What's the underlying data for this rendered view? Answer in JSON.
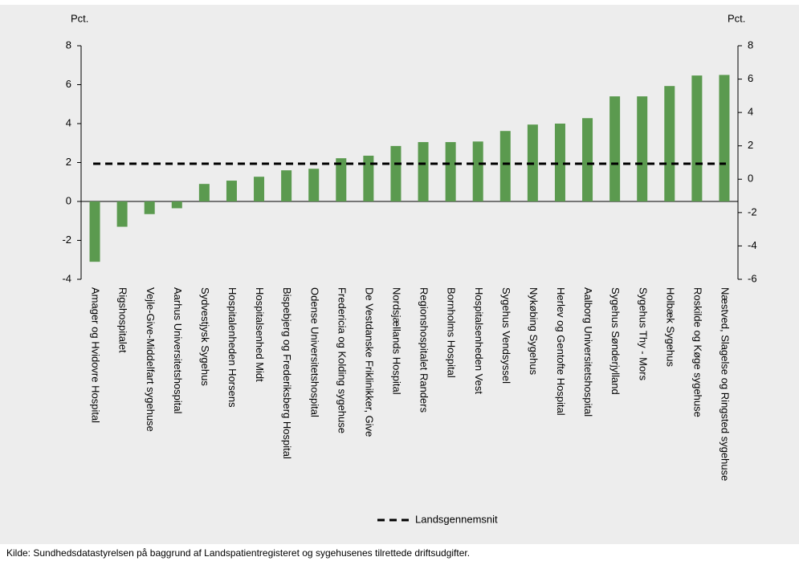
{
  "chart_data": {
    "type": "bar",
    "y_label": "Pct.",
    "y2_label": "Pct.",
    "categories": [
      "Amager og Hvidovre Hospital",
      "Rigshospitalet",
      "Vejle-Give-Middelfart sygehuse",
      "Aarhus Universitetshospital",
      "Sydvestjysk Sygehus",
      "Hospitalenheden Horsens",
      "Hospitalsenhed Midt",
      "Bispebjerg og Frederiksberg Hospital",
      "Odense Universitetshospital",
      "Fredericia og Kolding sygehuse",
      "De Vestdanske Friklinikker, Give",
      "Nordsjællands Hospital",
      "Regionshospitalet Randers",
      "Bornholms Hospital",
      "Hospitalsenheden Vest",
      "Sygehus Vendsyssel",
      "Nykøbing Sygehus",
      "Herlev og Gentofte Hospital",
      "Aalborg Universitetshospital",
      "Sygehus Sønderjylland",
      "Sygehus Thy - Mors",
      "Holbæk Sygehus",
      "Roskilde og Køge sygehuse",
      "Næstved, Slagelse og Ringsted sygehuse"
    ],
    "values": [
      -3.1,
      -1.3,
      -0.65,
      -0.35,
      0.9,
      1.07,
      1.27,
      1.6,
      1.68,
      2.22,
      2.35,
      2.85,
      3.05,
      3.05,
      3.08,
      3.62,
      3.95,
      4.0,
      4.28,
      5.4,
      5.4,
      5.93,
      6.47,
      6.5
    ],
    "color": "#5b9a4f",
    "reference_line": {
      "name": "Landsgennemsnit",
      "value": 1.94,
      "color": "#000000"
    },
    "ylim": [
      -4,
      8
    ],
    "yticks": [
      -4,
      -2,
      0,
      2,
      4,
      6,
      8
    ],
    "y2lim": [
      -6,
      8
    ],
    "y2ticks": [
      -6,
      -4,
      -2,
      0,
      2,
      4,
      6,
      8
    ],
    "source": "Kilde: Sundhedsdatastyrelsen på baggrund af Landspatientregisteret og sygehusenes tilrettede driftsudgifter."
  }
}
